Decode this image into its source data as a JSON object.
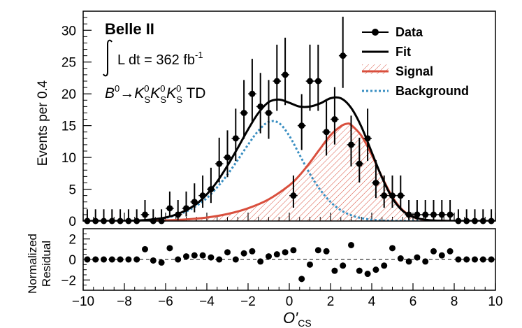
{
  "chart_data": [
    {
      "type": "scatter",
      "panel": "main",
      "experiment": "Belle II",
      "luminosity_text": "L dt = 362 fb",
      "luminosity_exponent": "-1",
      "process": {
        "prefix": "B",
        "prefix_sup": "0",
        "arrow": "→",
        "k": "K",
        "k_sub": "S",
        "k_sup": "0",
        "suffix": " TD"
      },
      "xlabel": "",
      "ylabel": "Events per 0.4",
      "xlim": [
        -10,
        10
      ],
      "ylim": [
        0,
        33
      ],
      "yticks": [
        0,
        5,
        10,
        15,
        20,
        25,
        30
      ],
      "legend": {
        "position": "top-right",
        "entries": [
          "Data",
          "Fit",
          "Signal",
          "Background"
        ]
      },
      "colors": {
        "data": "#000000",
        "fit": "#000000",
        "signal": "#d94f3d",
        "background": "#3a8fc2"
      },
      "series": [
        {
          "name": "Data",
          "x": [
            -9.8,
            -9.4,
            -9.0,
            -8.6,
            -8.2,
            -7.8,
            -7.4,
            -7.0,
            -6.6,
            -6.2,
            -5.8,
            -5.4,
            -5.0,
            -4.6,
            -4.2,
            -3.8,
            -3.4,
            -3.0,
            -2.6,
            -2.2,
            -1.8,
            -1.4,
            -1.0,
            -0.6,
            -0.2,
            0.2,
            0.6,
            1.0,
            1.4,
            1.8,
            2.2,
            2.6,
            3.0,
            3.4,
            3.8,
            4.2,
            4.6,
            5.0,
            5.4,
            5.8,
            6.2,
            6.6,
            7.0,
            7.4,
            7.8,
            8.2,
            8.6,
            9.0,
            9.4,
            9.8
          ],
          "values": [
            0,
            0,
            0,
            0,
            0,
            0,
            0,
            1,
            0,
            0,
            2,
            1,
            2,
            3,
            4,
            5,
            9,
            10,
            13,
            17,
            20,
            18,
            17,
            22,
            23,
            4,
            15,
            22,
            22,
            14,
            16,
            26,
            12,
            9,
            13,
            6,
            4,
            4,
            4,
            1,
            1,
            1,
            1,
            1,
            1,
            0,
            0,
            0,
            0,
            0
          ],
          "err_low": [
            0,
            0,
            0,
            0,
            0,
            0,
            0,
            0.83,
            0,
            0,
            1.29,
            0.83,
            1.29,
            1.63,
            1.91,
            2.16,
            2.94,
            3.1,
            3.55,
            4.08,
            4.43,
            4.21,
            4.08,
            4.67,
            4.77,
            1.91,
            3.84,
            4.67,
            4.67,
            3.7,
            3.97,
            5.07,
            3.42,
            2.94,
            3.55,
            2.39,
            1.91,
            1.91,
            1.91,
            0.83,
            0.83,
            0.83,
            0.83,
            0.83,
            0.83,
            0,
            0,
            0,
            0,
            0
          ],
          "err_high": [
            1.84,
            1.84,
            1.84,
            1.84,
            1.84,
            1.84,
            1.84,
            2.3,
            1.84,
            1.84,
            2.64,
            2.3,
            2.64,
            2.92,
            3.16,
            3.38,
            4.11,
            4.26,
            4.67,
            5.18,
            5.5,
            5.29,
            5.18,
            5.74,
            5.84,
            3.16,
            4.95,
            5.74,
            5.74,
            4.82,
            5.07,
            6.13,
            4.57,
            4.11,
            4.67,
            3.58,
            3.16,
            3.16,
            3.16,
            2.3,
            2.3,
            2.3,
            2.3,
            2.3,
            2.3,
            1.84,
            1.84,
            1.84,
            1.84,
            1.84
          ]
        },
        {
          "name": "Fit",
          "x": [
            -10,
            -9.5,
            -9,
            -8.5,
            -8,
            -7.5,
            -7,
            -6.5,
            -6,
            -5.5,
            -5,
            -4.5,
            -4,
            -3.5,
            -3,
            -2.5,
            -2,
            -1.5,
            -1,
            -0.5,
            0,
            0.5,
            1,
            1.5,
            2,
            2.5,
            3,
            3.5,
            4,
            4.5,
            5,
            5.5,
            6,
            6.5,
            7,
            7.5,
            8,
            8.5,
            9,
            9.5,
            10
          ],
          "values": [
            0,
            0,
            0,
            0,
            0.02,
            0.05,
            0.15,
            0.3,
            0.55,
            1.0,
            1.7,
            2.7,
            4.2,
            6.2,
            8.7,
            11.5,
            14.4,
            17.0,
            18.7,
            19.1,
            18.6,
            18.0,
            18.0,
            18.5,
            19.3,
            19.3,
            17.8,
            14.8,
            10.8,
            6.8,
            3.6,
            1.6,
            0.65,
            0.25,
            0.08,
            0.03,
            0.01,
            0,
            0,
            0,
            0
          ]
        },
        {
          "name": "Signal",
          "x": [
            -10,
            -9,
            -8,
            -7,
            -6,
            -5,
            -4,
            -3,
            -2,
            -1,
            0,
            0.5,
            1,
            1.5,
            2,
            2.5,
            2.8,
            3,
            3.5,
            4,
            4.5,
            5,
            5.5,
            6,
            6.5,
            7,
            7.5,
            8,
            9,
            10
          ],
          "values": [
            0,
            0,
            0,
            0.03,
            0.1,
            0.25,
            0.55,
            1.1,
            2.0,
            3.4,
            5.6,
            7.2,
            9.2,
            11.4,
            13.5,
            14.9,
            15.3,
            15.1,
            13.4,
            10.4,
            6.9,
            3.8,
            1.7,
            0.65,
            0.22,
            0.07,
            0.02,
            0,
            0,
            0
          ]
        },
        {
          "name": "Background",
          "x": [
            -10,
            -9,
            -8,
            -7.5,
            -7,
            -6.5,
            -6,
            -5.5,
            -5,
            -4.5,
            -4,
            -3.5,
            -3,
            -2.5,
            -2,
            -1.5,
            -1,
            -0.5,
            0,
            0.5,
            1,
            1.5,
            2,
            2.5,
            3,
            3.5,
            4,
            4.5,
            5,
            5.5,
            6,
            7,
            8,
            9,
            10
          ],
          "values": [
            0,
            0,
            0.02,
            0.05,
            0.12,
            0.25,
            0.5,
            0.9,
            1.5,
            2.4,
            3.6,
            5.3,
            7.3,
            9.6,
            12.0,
            14.2,
            15.6,
            15.4,
            13.4,
            10.4,
            7.4,
            4.9,
            3.0,
            1.7,
            0.9,
            0.45,
            0.2,
            0.08,
            0.03,
            0.01,
            0,
            0,
            0,
            0,
            0
          ]
        }
      ]
    },
    {
      "type": "scatter",
      "panel": "residual",
      "xlabel": "O′",
      "xlabel_sub": "CS",
      "ylabel": [
        "Normalized",
        "Residual"
      ],
      "xlim": [
        -10,
        10
      ],
      "ylim": [
        -3,
        3
      ],
      "xticks": [
        -10,
        -8,
        -6,
        -4,
        -2,
        0,
        2,
        4,
        6,
        8,
        10
      ],
      "xtick_labels": [
        "−10",
        "−8",
        "−6",
        "−4",
        "−2",
        "0",
        "2",
        "4",
        "6",
        "8",
        "10"
      ],
      "yticks": [
        -2,
        0,
        2
      ],
      "ytick_labels": [
        "−2",
        "0",
        "2"
      ],
      "series": [
        {
          "name": "Normalized Residual",
          "x": [
            -9.8,
            -9.4,
            -9.0,
            -8.6,
            -8.2,
            -7.8,
            -7.4,
            -7.0,
            -6.6,
            -6.2,
            -5.8,
            -5.4,
            -5.0,
            -4.6,
            -4.2,
            -3.8,
            -3.4,
            -3.0,
            -2.6,
            -2.2,
            -1.8,
            -1.4,
            -1.0,
            -0.6,
            -0.2,
            0.2,
            0.6,
            1.0,
            1.4,
            1.8,
            2.2,
            2.6,
            3.0,
            3.4,
            3.8,
            4.2,
            4.6,
            5.0,
            5.4,
            5.8,
            6.2,
            6.6,
            7.0,
            7.4,
            7.8,
            8.2,
            8.6,
            9.0,
            9.4,
            9.8
          ],
          "values": [
            0,
            0,
            0,
            0,
            0,
            0,
            0,
            1.0,
            -0.1,
            -0.3,
            1.1,
            0,
            0.3,
            0.4,
            0.4,
            0.2,
            0,
            0.7,
            0,
            0.6,
            0.8,
            -0.2,
            0.3,
            0.5,
            0.7,
            0.9,
            -1.9,
            -0.5,
            0.9,
            0.8,
            -1.1,
            -0.6,
            1.4,
            -1.1,
            -1.4,
            -1.0,
            -0.6,
            1.1,
            0.1,
            -0.2,
            0.2,
            -0.2,
            0.8,
            0.4,
            0.8,
            0,
            0,
            0,
            0,
            0
          ]
        }
      ]
    }
  ]
}
